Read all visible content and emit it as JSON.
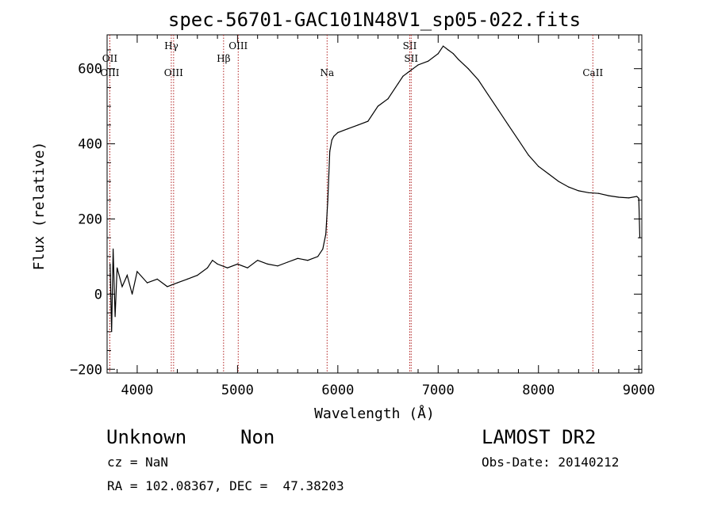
{
  "chart_data": {
    "type": "line",
    "title": "spec-56701-GAC101N48V1_sp05-022.fits",
    "xlabel": "Wavelength (Å)",
    "ylabel": "Flux (relative)",
    "xlim": [
      3700,
      9030
    ],
    "ylim": [
      -210,
      690
    ],
    "xticks": [
      4000,
      5000,
      6000,
      7000,
      8000,
      9000
    ],
    "yticks": [
      -200,
      0,
      200,
      400,
      600
    ],
    "xtick_labels": [
      "4000",
      "5000",
      "6000",
      "7000",
      "8000",
      "9000"
    ],
    "ytick_labels": [
      "−200",
      "0",
      "200",
      "400",
      "600"
    ],
    "grid": false,
    "line_color": "#000000",
    "marker_color": "#b22222",
    "lines": [
      {
        "label": "OII",
        "wavelength": 3727,
        "row": 1
      },
      {
        "label": "OIII",
        "wavelength": 3727,
        "row": 2
      },
      {
        "label": "Hγ",
        "wavelength": 4340,
        "row": 0
      },
      {
        "label": "OIII",
        "wavelength": 4363,
        "row": 2
      },
      {
        "label": "Hβ",
        "wavelength": 4861,
        "row": 1
      },
      {
        "label": "OIII",
        "wavelength": 5007,
        "row": 0
      },
      {
        "label": "Na",
        "wavelength": 5893,
        "row": 2
      },
      {
        "label": "SII",
        "wavelength": 6717,
        "row": 0
      },
      {
        "label": "SII",
        "wavelength": 6731,
        "row": 1
      },
      {
        "label": "CaII",
        "wavelength": 8542,
        "row": 2
      }
    ],
    "series": [
      {
        "x": [
          3730,
          3745,
          3760,
          3780,
          3800,
          3850,
          3900,
          3950,
          4000,
          4100,
          4200,
          4300,
          4400,
          4500,
          4600,
          4700,
          4750,
          4800,
          4900,
          5000,
          5100,
          5200,
          5300,
          5400,
          5500,
          5600,
          5700,
          5800,
          5850,
          5880,
          5900,
          5920,
          5940,
          5960,
          6000,
          6100,
          6200,
          6300,
          6400,
          6500,
          6600,
          6650,
          6700,
          6750,
          6800,
          6900,
          7000,
          7050,
          7100,
          7150,
          7200,
          7300,
          7400,
          7500,
          7600,
          7700,
          7800,
          7900,
          8000,
          8100,
          8200,
          8300,
          8400,
          8500,
          8600,
          8700,
          8800,
          8900,
          8980,
          9000,
          9010
        ],
        "y": [
          80,
          -100,
          120,
          -60,
          70,
          20,
          50,
          0,
          60,
          30,
          40,
          20,
          30,
          40,
          50,
          70,
          90,
          80,
          70,
          80,
          70,
          90,
          80,
          75,
          85,
          95,
          90,
          100,
          120,
          160,
          250,
          380,
          410,
          420,
          430,
          440,
          450,
          460,
          500,
          520,
          560,
          580,
          590,
          600,
          610,
          620,
          640,
          660,
          650,
          640,
          625,
          600,
          570,
          530,
          490,
          450,
          410,
          370,
          340,
          320,
          300,
          285,
          275,
          270,
          268,
          262,
          258,
          256,
          260,
          255,
          150
        ]
      }
    ]
  },
  "info": {
    "class": "Unknown",
    "subclass": "Non",
    "cz": "cz = NaN",
    "coords": "RA = 102.08367, DEC =  47.38203",
    "survey": "LAMOST DR2",
    "obs_date": "Obs-Date: 20140212"
  }
}
